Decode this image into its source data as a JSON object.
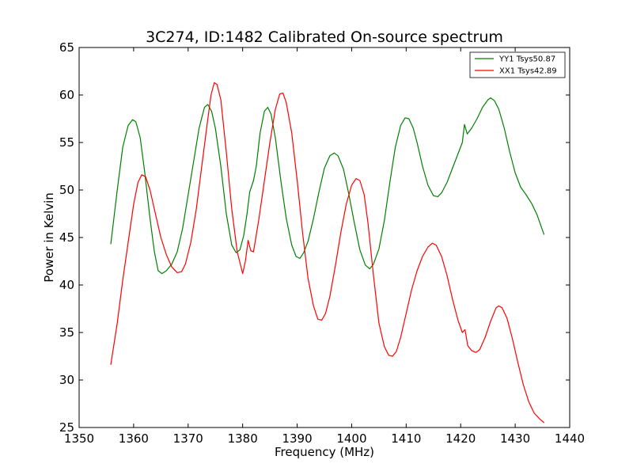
{
  "chart_data": {
    "type": "line",
    "title": "3C274, ID:1482 Calibrated On-source spectrum",
    "xlabel": "Frequency (MHz)",
    "ylabel": "Power in Kelvin",
    "xlim": [
      1350,
      1440
    ],
    "ylim": [
      25,
      65
    ],
    "xticks": [
      1350,
      1360,
      1370,
      1380,
      1390,
      1400,
      1410,
      1420,
      1430,
      1440
    ],
    "yticks": [
      25,
      30,
      35,
      40,
      45,
      50,
      55,
      60,
      65
    ],
    "grid": false,
    "legend_position": "top-right",
    "series": [
      {
        "name": "YY1 Tsys50.87",
        "color": "#008000",
        "points": [
          [
            1355.8,
            44.3
          ],
          [
            1357.0,
            50.0
          ],
          [
            1358.0,
            54.5
          ],
          [
            1359.0,
            56.8
          ],
          [
            1359.8,
            57.4
          ],
          [
            1360.4,
            57.2
          ],
          [
            1361.2,
            55.5
          ],
          [
            1362.0,
            52.0
          ],
          [
            1363.0,
            47.0
          ],
          [
            1363.8,
            43.5
          ],
          [
            1364.5,
            41.5
          ],
          [
            1365.2,
            41.2
          ],
          [
            1366.0,
            41.5
          ],
          [
            1367.0,
            42.2
          ],
          [
            1368.0,
            43.5
          ],
          [
            1369.0,
            46.0
          ],
          [
            1370.0,
            49.5
          ],
          [
            1371.0,
            53.0
          ],
          [
            1372.0,
            56.5
          ],
          [
            1373.0,
            58.7
          ],
          [
            1373.6,
            59.0
          ],
          [
            1374.3,
            58.3
          ],
          [
            1375.0,
            56.5
          ],
          [
            1376.0,
            52.5
          ],
          [
            1377.0,
            47.5
          ],
          [
            1378.0,
            44.2
          ],
          [
            1378.8,
            43.4
          ],
          [
            1379.5,
            43.7
          ],
          [
            1380.2,
            45.2
          ],
          [
            1380.8,
            47.5
          ],
          [
            1381.3,
            49.8
          ],
          [
            1382.0,
            51.0
          ],
          [
            1382.5,
            52.5
          ],
          [
            1383.2,
            56.0
          ],
          [
            1384.0,
            58.3
          ],
          [
            1384.6,
            58.7
          ],
          [
            1385.2,
            58.0
          ],
          [
            1386.0,
            55.5
          ],
          [
            1387.0,
            51.0
          ],
          [
            1388.0,
            47.0
          ],
          [
            1389.0,
            44.2
          ],
          [
            1389.8,
            43.0
          ],
          [
            1390.5,
            42.8
          ],
          [
            1391.2,
            43.4
          ],
          [
            1392.0,
            44.6
          ],
          [
            1393.0,
            47.0
          ],
          [
            1394.0,
            49.8
          ],
          [
            1395.0,
            52.3
          ],
          [
            1396.0,
            53.6
          ],
          [
            1396.8,
            53.9
          ],
          [
            1397.5,
            53.6
          ],
          [
            1398.5,
            52.2
          ],
          [
            1399.5,
            49.5
          ],
          [
            1400.5,
            46.5
          ],
          [
            1401.5,
            43.7
          ],
          [
            1402.5,
            42.1
          ],
          [
            1403.3,
            41.7
          ],
          [
            1404.0,
            42.2
          ],
          [
            1405.0,
            43.8
          ],
          [
            1406.0,
            46.8
          ],
          [
            1407.0,
            50.8
          ],
          [
            1408.0,
            54.5
          ],
          [
            1409.0,
            56.8
          ],
          [
            1409.8,
            57.6
          ],
          [
            1410.5,
            57.5
          ],
          [
            1411.3,
            56.5
          ],
          [
            1412.0,
            55.0
          ],
          [
            1413.0,
            52.5
          ],
          [
            1414.0,
            50.5
          ],
          [
            1415.0,
            49.4
          ],
          [
            1415.8,
            49.3
          ],
          [
            1416.5,
            49.7
          ],
          [
            1417.5,
            50.8
          ],
          [
            1418.5,
            52.3
          ],
          [
            1419.5,
            53.8
          ],
          [
            1420.3,
            55.0
          ],
          [
            1420.7,
            56.9
          ],
          [
            1421.2,
            55.9
          ],
          [
            1422.0,
            56.5
          ],
          [
            1423.0,
            57.5
          ],
          [
            1424.0,
            58.7
          ],
          [
            1425.0,
            59.5
          ],
          [
            1425.5,
            59.7
          ],
          [
            1426.2,
            59.4
          ],
          [
            1427.0,
            58.5
          ],
          [
            1428.0,
            56.5
          ],
          [
            1429.0,
            54.0
          ],
          [
            1430.0,
            51.8
          ],
          [
            1431.0,
            50.3
          ],
          [
            1432.0,
            49.5
          ],
          [
            1433.0,
            48.6
          ],
          [
            1434.0,
            47.4
          ],
          [
            1435.3,
            45.3
          ]
        ]
      },
      {
        "name": "XX1 Tsys42.89",
        "color": "#ff0000",
        "points": [
          [
            1355.8,
            31.6
          ],
          [
            1357.0,
            36.0
          ],
          [
            1358.0,
            40.5
          ],
          [
            1359.0,
            44.5
          ],
          [
            1360.0,
            48.5
          ],
          [
            1360.8,
            50.8
          ],
          [
            1361.5,
            51.6
          ],
          [
            1362.2,
            51.4
          ],
          [
            1363.0,
            50.0
          ],
          [
            1364.0,
            47.5
          ],
          [
            1365.0,
            45.0
          ],
          [
            1366.0,
            43.2
          ],
          [
            1367.0,
            41.9
          ],
          [
            1368.0,
            41.3
          ],
          [
            1368.8,
            41.4
          ],
          [
            1369.5,
            42.2
          ],
          [
            1370.5,
            44.5
          ],
          [
            1371.5,
            48.0
          ],
          [
            1372.5,
            52.5
          ],
          [
            1373.5,
            57.0
          ],
          [
            1374.2,
            60.0
          ],
          [
            1374.8,
            61.3
          ],
          [
            1375.3,
            61.1
          ],
          [
            1376.0,
            59.5
          ],
          [
            1377.0,
            54.0
          ],
          [
            1378.0,
            48.0
          ],
          [
            1379.0,
            43.5
          ],
          [
            1380.0,
            41.2
          ],
          [
            1380.5,
            42.5
          ],
          [
            1381.0,
            44.7
          ],
          [
            1381.5,
            43.6
          ],
          [
            1382.0,
            43.5
          ],
          [
            1383.0,
            47.0
          ],
          [
            1384.0,
            51.0
          ],
          [
            1385.0,
            55.0
          ],
          [
            1386.0,
            58.5
          ],
          [
            1386.8,
            60.1
          ],
          [
            1387.4,
            60.2
          ],
          [
            1388.0,
            59.2
          ],
          [
            1389.0,
            56.0
          ],
          [
            1390.0,
            51.0
          ],
          [
            1391.0,
            45.5
          ],
          [
            1392.0,
            40.7
          ],
          [
            1393.0,
            37.8
          ],
          [
            1393.8,
            36.4
          ],
          [
            1394.5,
            36.3
          ],
          [
            1395.2,
            37.0
          ],
          [
            1396.0,
            38.8
          ],
          [
            1397.0,
            42.0
          ],
          [
            1398.0,
            45.5
          ],
          [
            1399.0,
            48.5
          ],
          [
            1400.0,
            50.5
          ],
          [
            1400.8,
            51.2
          ],
          [
            1401.5,
            51.0
          ],
          [
            1402.3,
            49.5
          ],
          [
            1403.0,
            46.5
          ],
          [
            1404.0,
            41.0
          ],
          [
            1405.0,
            36.0
          ],
          [
            1406.0,
            33.5
          ],
          [
            1406.8,
            32.6
          ],
          [
            1407.5,
            32.5
          ],
          [
            1408.2,
            33.0
          ],
          [
            1409.0,
            34.5
          ],
          [
            1410.0,
            37.0
          ],
          [
            1411.0,
            39.5
          ],
          [
            1412.0,
            41.5
          ],
          [
            1413.0,
            43.0
          ],
          [
            1414.0,
            44.0
          ],
          [
            1414.8,
            44.4
          ],
          [
            1415.5,
            44.2
          ],
          [
            1416.5,
            43.0
          ],
          [
            1417.5,
            41.0
          ],
          [
            1418.5,
            38.5
          ],
          [
            1419.5,
            36.3
          ],
          [
            1420.3,
            35.0
          ],
          [
            1420.8,
            35.3
          ],
          [
            1421.3,
            33.6
          ],
          [
            1422.0,
            33.1
          ],
          [
            1422.8,
            32.9
          ],
          [
            1423.5,
            33.2
          ],
          [
            1424.5,
            34.5
          ],
          [
            1425.5,
            36.2
          ],
          [
            1426.5,
            37.6
          ],
          [
            1427.0,
            37.8
          ],
          [
            1427.6,
            37.6
          ],
          [
            1428.5,
            36.5
          ],
          [
            1429.5,
            34.3
          ],
          [
            1430.5,
            31.8
          ],
          [
            1431.5,
            29.5
          ],
          [
            1432.5,
            27.7
          ],
          [
            1433.5,
            26.5
          ],
          [
            1434.5,
            25.9
          ],
          [
            1435.3,
            25.5
          ]
        ]
      }
    ]
  }
}
